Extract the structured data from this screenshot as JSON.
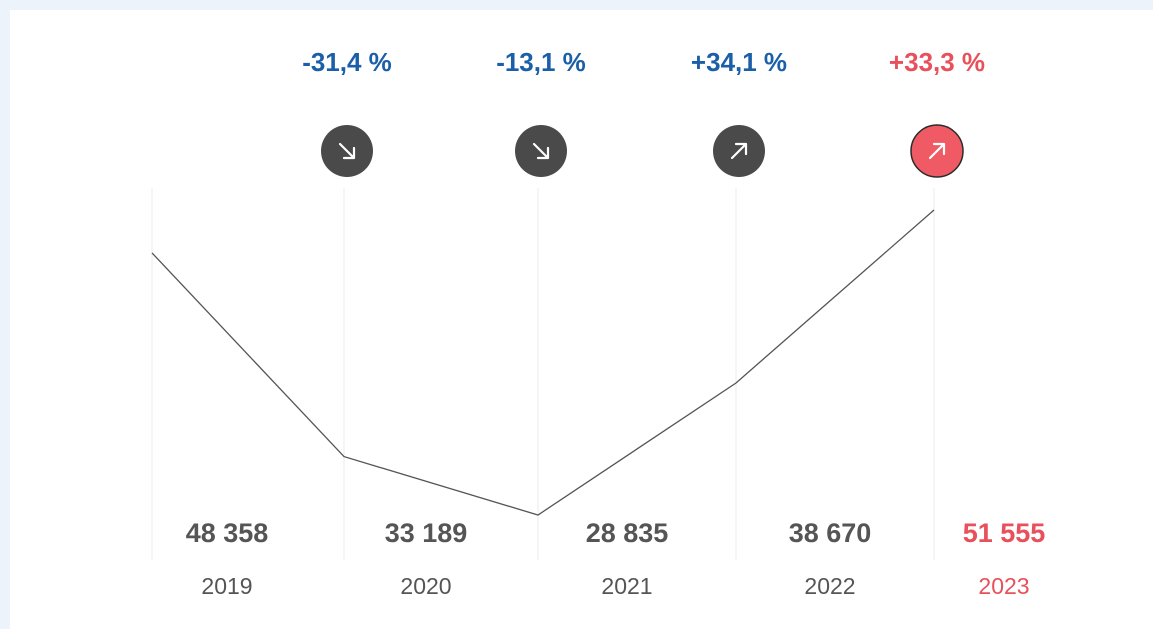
{
  "chart_data": {
    "type": "line",
    "title": "",
    "xlabel": "",
    "ylabel": "",
    "categories": [
      "2019",
      "2020",
      "2021",
      "2022",
      "2023"
    ],
    "series": [
      {
        "values": [
          48358,
          33189,
          28835,
          38670,
          51555
        ]
      }
    ],
    "value_labels": [
      "48 358",
      "33 189",
      "28 835",
      "38 670",
      "51 555"
    ],
    "changes": [
      {
        "label": "-31,4 %",
        "direction": "down",
        "highlight": false
      },
      {
        "label": "-13,1 %",
        "direction": "down",
        "highlight": false
      },
      {
        "label": "+34,1 %",
        "direction": "up",
        "highlight": false
      },
      {
        "label": "+33,3 %",
        "direction": "up",
        "highlight": true
      }
    ],
    "highlight_index": 4,
    "grid": "vertical",
    "colors": {
      "line": "#555555",
      "grid": "#ebebeb",
      "value_text": "#555555",
      "year_text": "#555555",
      "change_text": "#1a5fa8",
      "highlight": "#e8505b",
      "badge": "#4a4a4a",
      "badge_highlight": "#ef5a64",
      "arrow": "#ffffff"
    },
    "icons": {
      "down": "arrow-down-right-icon",
      "up": "arrow-up-right-icon"
    }
  }
}
